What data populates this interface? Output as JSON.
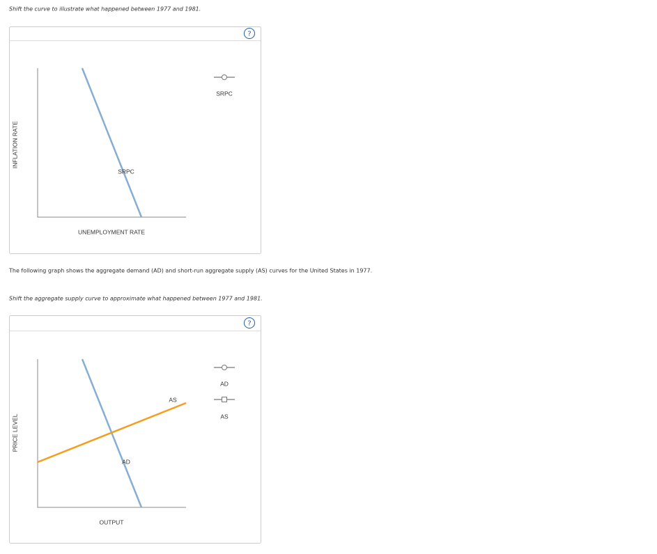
{
  "instruction_1": "Shift the curve to illustrate what happened between 1977 and 1981.",
  "panel_1": {
    "help": "?",
    "y_axis_label": "INFLATION RATE",
    "x_axis_label": "UNEMPLOYMENT RATE",
    "curve_label": "SRPC",
    "tools": [
      "SRPC"
    ]
  },
  "paragraph": "The following graph shows the aggregate demand (AD) and short-run aggregate supply (AS) curves for the United States in 1977.",
  "instruction_2": "Shift the aggregate supply curve to approximate what happened between 1977 and 1981.",
  "panel_2": {
    "help": "?",
    "y_axis_label": "PRICE LEVEL",
    "x_axis_label": "OUTPUT",
    "curve_labels": [
      "AD",
      "AS"
    ],
    "tools": [
      "AD",
      "AS"
    ]
  }
}
